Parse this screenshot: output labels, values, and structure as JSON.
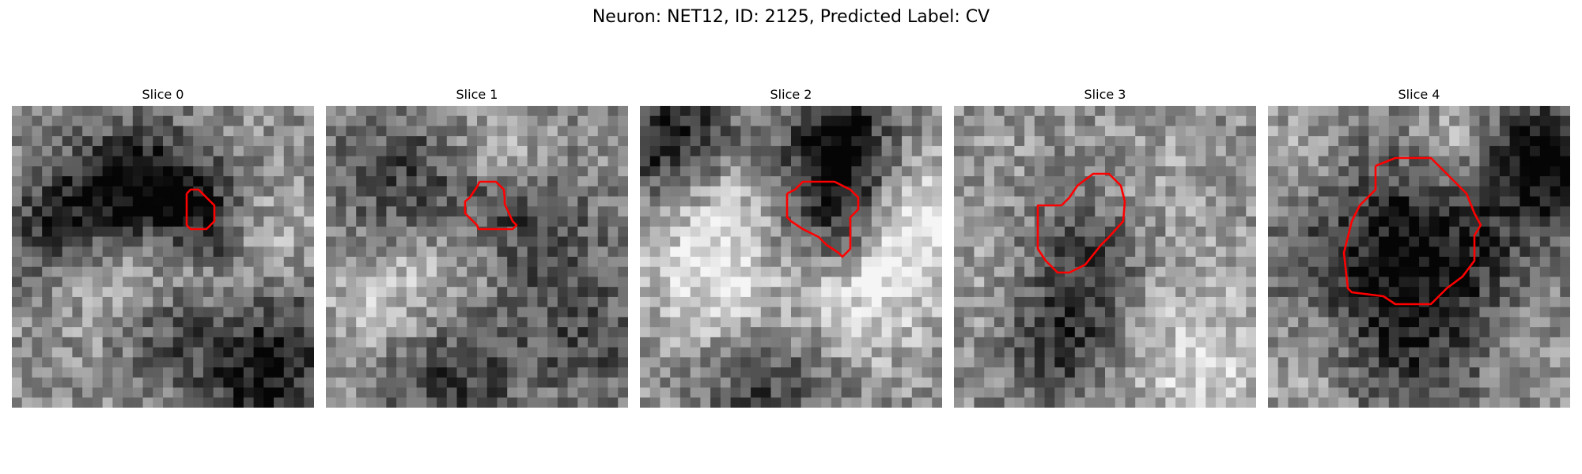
{
  "figure": {
    "title": "Neuron: NET12, ID: 2125, Predicted Label: CV"
  },
  "panels": [
    {
      "title": "Slice 0"
    },
    {
      "title": "Slice 1"
    },
    {
      "title": "Slice 2"
    },
    {
      "title": "Slice 3"
    },
    {
      "title": "Slice 4"
    }
  ],
  "colors": {
    "contour": "#ff0000",
    "background": "#ffffff",
    "colormap": "grayscale"
  }
}
